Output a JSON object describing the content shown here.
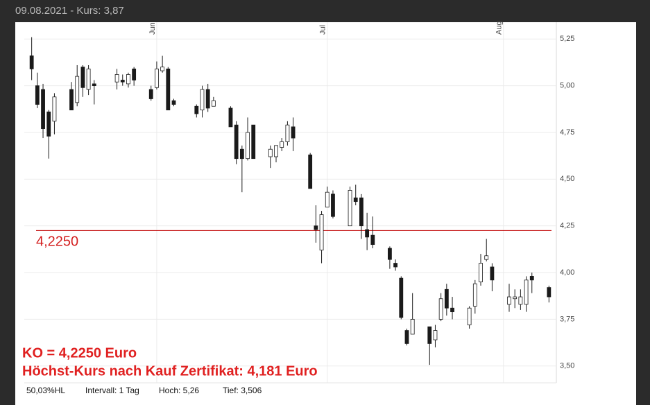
{
  "header": "09.08.2021  -  Kurs: 3,87",
  "footer": [
    "50,03%HL",
    "Intervall: 1 Tag",
    "Hoch: 5,26",
    "Tief: 3,506"
  ],
  "chart_data": {
    "type": "candlestick",
    "x": [
      -22,
      -21,
      -20,
      -19,
      -18,
      -15,
      -14,
      -13,
      -12,
      -11,
      -7,
      -6,
      -5,
      -4,
      -1,
      0,
      1,
      2,
      3,
      7,
      8,
      9,
      10,
      13,
      14,
      15,
      16,
      17,
      20,
      21,
      22,
      23,
      24,
      27,
      28,
      29,
      30,
      31,
      34,
      35,
      36,
      37,
      38,
      41,
      42,
      43,
      44,
      45,
      48,
      49,
      50,
      51,
      52,
      55,
      56,
      57,
      58,
      59,
      62,
      63,
      64,
      65,
      66,
      69
    ],
    "open": [
      5.16,
      5.0,
      4.98,
      4.86,
      4.81,
      4.98,
      4.91,
      5.1,
      4.98,
      5.01,
      5.02,
      5.03,
      5.01,
      5.09,
      4.98,
      4.99,
      5.08,
      5.09,
      4.92,
      4.89,
      4.87,
      4.98,
      4.89,
      4.88,
      4.79,
      4.66,
      4.61,
      4.79,
      4.62,
      4.62,
      4.67,
      4.7,
      4.78,
      4.63,
      4.25,
      4.12,
      4.35,
      4.42,
      4.25,
      4.4,
      4.4,
      4.23,
      4.2,
      4.13,
      4.05,
      3.97,
      3.69,
      3.67,
      3.71,
      3.64,
      3.75,
      3.91,
      3.81,
      3.72,
      3.82,
      3.95,
      4.07,
      4.03,
      3.83,
      3.86,
      3.83,
      3.83,
      3.98,
      3.92
    ],
    "high": [
      5.26,
      5.07,
      5.01,
      4.87,
      4.96,
      5.02,
      5.11,
      5.11,
      5.11,
      5.03,
      5.09,
      5.06,
      5.07,
      5.1,
      5.0,
      5.13,
      5.16,
      5.1,
      4.93,
      4.9,
      5.0,
      5.01,
      4.94,
      4.89,
      4.81,
      4.68,
      4.83,
      4.79,
      4.68,
      4.68,
      4.72,
      4.81,
      4.83,
      4.64,
      4.36,
      4.33,
      4.46,
      4.44,
      4.46,
      4.47,
      4.42,
      4.32,
      4.3,
      4.14,
      4.07,
      3.98,
      3.7,
      3.89,
      3.71,
      3.72,
      3.89,
      3.94,
      3.87,
      3.82,
      3.96,
      4.1,
      4.18,
      4.05,
      3.94,
      3.91,
      3.91,
      3.98,
      4.0,
      3.93
    ],
    "low": [
      5.03,
      4.88,
      4.72,
      4.61,
      4.74,
      4.87,
      4.89,
      4.94,
      4.95,
      4.9,
      4.98,
      5.0,
      4.99,
      5.0,
      4.92,
      4.98,
      5.07,
      4.87,
      4.89,
      4.83,
      4.83,
      4.86,
      4.89,
      4.78,
      4.58,
      4.43,
      4.6,
      4.61,
      4.56,
      4.59,
      4.65,
      4.68,
      4.65,
      4.45,
      4.16,
      4.05,
      4.35,
      4.29,
      4.25,
      4.36,
      4.18,
      4.12,
      4.13,
      4.02,
      4.01,
      3.75,
      3.61,
      3.67,
      3.506,
      3.6,
      3.74,
      3.77,
      3.75,
      3.7,
      3.78,
      3.93,
      4.06,
      3.9,
      3.79,
      3.81,
      3.8,
      3.79,
      3.89,
      3.84
    ],
    "close": [
      5.09,
      4.9,
      4.77,
      4.73,
      4.94,
      4.87,
      5.05,
      4.99,
      5.09,
      5.0,
      5.06,
      5.02,
      5.06,
      5.03,
      4.93,
      5.09,
      5.1,
      4.87,
      4.9,
      4.85,
      4.98,
      4.88,
      4.92,
      4.78,
      4.61,
      4.61,
      4.75,
      4.61,
      4.66,
      4.68,
      4.7,
      4.79,
      4.72,
      4.45,
      4.23,
      4.31,
      4.43,
      4.3,
      4.44,
      4.38,
      4.25,
      4.19,
      4.15,
      4.07,
      4.03,
      3.76,
      3.62,
      3.75,
      3.62,
      3.69,
      3.86,
      3.81,
      3.79,
      3.81,
      3.94,
      4.05,
      4.09,
      3.96,
      3.87,
      3.87,
      3.87,
      3.96,
      3.96,
      3.87
    ],
    "up_color": "#ffffff",
    "down_color": "#1a1a1a",
    "wick_color": "#1a1a1a",
    "xlim": [
      -23.3,
      70.3
    ],
    "xticks": [
      {
        "value": 0,
        "label": "Jun"
      },
      {
        "value": 30,
        "label": "Jul"
      },
      {
        "value": 61,
        "label": "Aug"
      }
    ],
    "ylim": [
      3.41,
      5.34
    ],
    "yticks": [
      {
        "value": 3.5,
        "label": "3,50"
      },
      {
        "value": 3.75,
        "label": "3,75"
      },
      {
        "value": 4.0,
        "label": "4,00"
      },
      {
        "value": 4.25,
        "label": "4,25"
      },
      {
        "value": 4.5,
        "label": "4,50"
      },
      {
        "value": 4.75,
        "label": "4,75"
      },
      {
        "value": 5.0,
        "label": "5,00"
      },
      {
        "value": 5.25,
        "label": "5,25"
      }
    ],
    "grid": true,
    "reference_line": {
      "value": 4.225,
      "label": "4,2250",
      "color": "#c00000"
    },
    "annotations": [
      "KO = 4,2250 Euro",
      "Höchst-Kurs nach Kauf Zertifikat: 4,181 Euro"
    ]
  }
}
